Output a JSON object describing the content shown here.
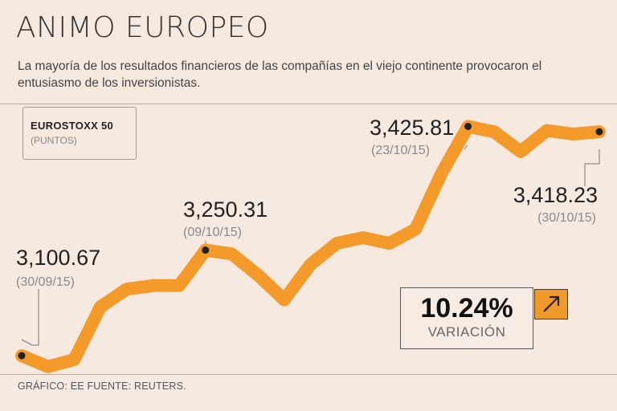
{
  "title": "ANIMO EUROPEO",
  "subtitle": "La mayoría de los resultados financieros de las compañías en el viejo continente provocaron el entusiasmo de los inversionistas.",
  "index": {
    "name": "EUROSTOXX 50",
    "unit": "(PUNTOS)"
  },
  "variation": {
    "value": "10.24%",
    "label": "VARIACIÓN",
    "icon": "arrow-up-right-icon"
  },
  "footer": "GRÁFICO: EE  FUENTE: REUTERS.",
  "colors": {
    "line": "#f39a2b",
    "background": "#f5e9e0",
    "marker": "#222222"
  },
  "chart_data": {
    "type": "line",
    "title": "",
    "xlabel": "",
    "ylabel": "",
    "ylim": [
      3070,
      3440
    ],
    "grid": false,
    "x": [
      "2015-09-30",
      "2015-10-01",
      "2015-10-02",
      "2015-10-05",
      "2015-10-06",
      "2015-10-07",
      "2015-10-08",
      "2015-10-09",
      "2015-10-12",
      "2015-10-13",
      "2015-10-14",
      "2015-10-15",
      "2015-10-16",
      "2015-10-19",
      "2015-10-20",
      "2015-10-21",
      "2015-10-22",
      "2015-10-23",
      "2015-10-26",
      "2015-10-27",
      "2015-10-28",
      "2015-10-29",
      "2015-10-30"
    ],
    "series": [
      {
        "values": [
          3100.67,
          3085,
          3095,
          3170,
          3195,
          3200,
          3200,
          3250.31,
          3245,
          3215,
          3180,
          3230,
          3260,
          3268,
          3260,
          3280,
          3360,
          3425.81,
          3418,
          3390,
          3420,
          3415,
          3418.23
        ]
      }
    ],
    "annotations": [
      {
        "index": 0,
        "value": "3,100.67",
        "date": "(30/09/15)"
      },
      {
        "index": 7,
        "value": "3,250.31",
        "date": "(09/10/15)"
      },
      {
        "index": 17,
        "value": "3,425.81",
        "date": "(23/10/15)"
      },
      {
        "index": 22,
        "value": "3,418.23",
        "date": "(30/10/15)"
      }
    ]
  }
}
